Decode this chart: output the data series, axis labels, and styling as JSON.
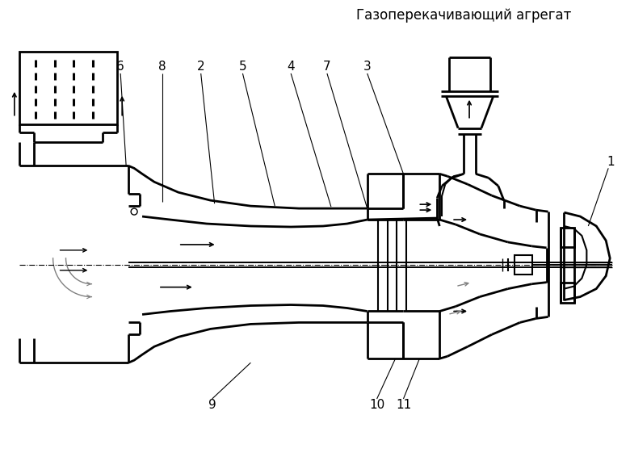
{
  "title": "Газоперекачивающий агрегат",
  "bg_color": "#ffffff",
  "line_color": "#000000",
  "title_fontsize": 12,
  "label_fontsize": 11,
  "lw_main": 2.0,
  "lw_med": 1.5,
  "lw_thin": 1.0,
  "lw_leader": 0.8
}
